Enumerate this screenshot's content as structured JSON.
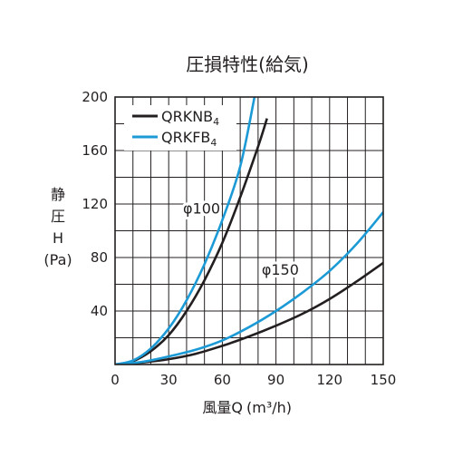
{
  "chart_data": {
    "type": "line",
    "title": "圧損特性(給気)",
    "xlabel": "風量Q",
    "xunit": "(m³/h)",
    "ylabel_chars": [
      "静",
      "圧",
      "H"
    ],
    "yunit": "(Pa)",
    "xlim": [
      0,
      150
    ],
    "ylim": [
      0,
      200
    ],
    "xticks": [
      0,
      30,
      60,
      90,
      120,
      150
    ],
    "yticks": [
      40,
      80,
      120,
      160,
      200
    ],
    "grid": "on",
    "legend_position": "top-left",
    "legend": [
      {
        "label": "QRKNB",
        "subscript": "4",
        "color": "#231f20"
      },
      {
        "label": "QRKFB",
        "subscript": "4",
        "color": "#1c9ad6"
      }
    ],
    "annotations": [
      {
        "text": "φ100",
        "x": 38,
        "y": 113
      },
      {
        "text": "φ150",
        "x": 82,
        "y": 67
      }
    ],
    "series": [
      {
        "legend_ref": "QRKNB4",
        "group": "φ100",
        "color": "#231f20",
        "x": [
          0,
          10,
          20,
          30,
          40,
          50,
          60,
          70,
          80,
          85
        ],
        "y": [
          0,
          2.5,
          10,
          22,
          40,
          63,
          91,
          125,
          163,
          184
        ]
      },
      {
        "legend_ref": "QRKFB4",
        "group": "φ100",
        "color": "#1c9ad6",
        "x": [
          0,
          10,
          20,
          30,
          40,
          50,
          60,
          70,
          78
        ],
        "y": [
          0,
          3,
          12,
          27,
          48,
          75,
          108,
          148,
          200
        ]
      },
      {
        "legend_ref": "QRKNB4",
        "group": "φ150",
        "color": "#231f20",
        "x": [
          0,
          15,
          30,
          45,
          60,
          75,
          90,
          105,
          120,
          135,
          150
        ],
        "y": [
          0,
          1.5,
          4,
          8,
          14,
          21,
          29,
          38,
          49,
          62,
          76
        ]
      },
      {
        "legend_ref": "QRKFB4",
        "group": "φ150",
        "color": "#1c9ad6",
        "x": [
          0,
          15,
          30,
          45,
          60,
          75,
          90,
          105,
          120,
          135,
          150
        ],
        "y": [
          0,
          2,
          6,
          11,
          18,
          28,
          40,
          54,
          70,
          90,
          114
        ]
      }
    ]
  }
}
